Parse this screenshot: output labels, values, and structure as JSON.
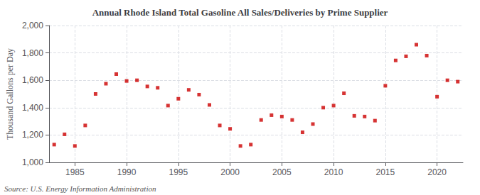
{
  "chart_data": {
    "type": "scatter",
    "title": "Annual Rhode Island Total Gasoline All Sales/Deliveries by Prime Supplier",
    "ylabel": "Thousand Gallons per Day",
    "annotations": [
      "Source: U.S. Energy Information Administration"
    ],
    "x": [
      1983,
      1984,
      1985,
      1986,
      1987,
      1988,
      1989,
      1990,
      1991,
      1992,
      1993,
      1994,
      1995,
      1996,
      1997,
      1998,
      1999,
      2000,
      2001,
      2002,
      2003,
      2004,
      2005,
      2006,
      2007,
      2008,
      2009,
      2010,
      2011,
      2012,
      2013,
      2014,
      2015,
      2016,
      2017,
      2018,
      2019,
      2020,
      2021,
      2022
    ],
    "values": [
      1130,
      1205,
      1120,
      1270,
      1500,
      1575,
      1645,
      1595,
      1600,
      1555,
      1545,
      1415,
      1465,
      1530,
      1495,
      1420,
      1270,
      1245,
      1120,
      1130,
      1310,
      1345,
      1335,
      1310,
      1220,
      1280,
      1400,
      1415,
      1505,
      1340,
      1335,
      1305,
      1560,
      1745,
      1775,
      1860,
      1780,
      1480,
      1600,
      1590
    ],
    "color": "#cc0000",
    "marker": "square",
    "xlim": [
      1982.5,
      2022.5
    ],
    "xticks": [
      1985,
      1990,
      1995,
      2000,
      2005,
      2010,
      2015,
      2020
    ],
    "ylim": [
      1000,
      2000
    ],
    "yticks": [
      {
        "value": 1000,
        "label": "1,000"
      },
      {
        "value": 1200,
        "label": "1,200"
      },
      {
        "value": 1400,
        "label": "1,400"
      },
      {
        "value": 1600,
        "label": "1,600"
      },
      {
        "value": 1800,
        "label": "1,800"
      },
      {
        "value": 2000,
        "label": "2,000"
      }
    ],
    "grid": true
  }
}
